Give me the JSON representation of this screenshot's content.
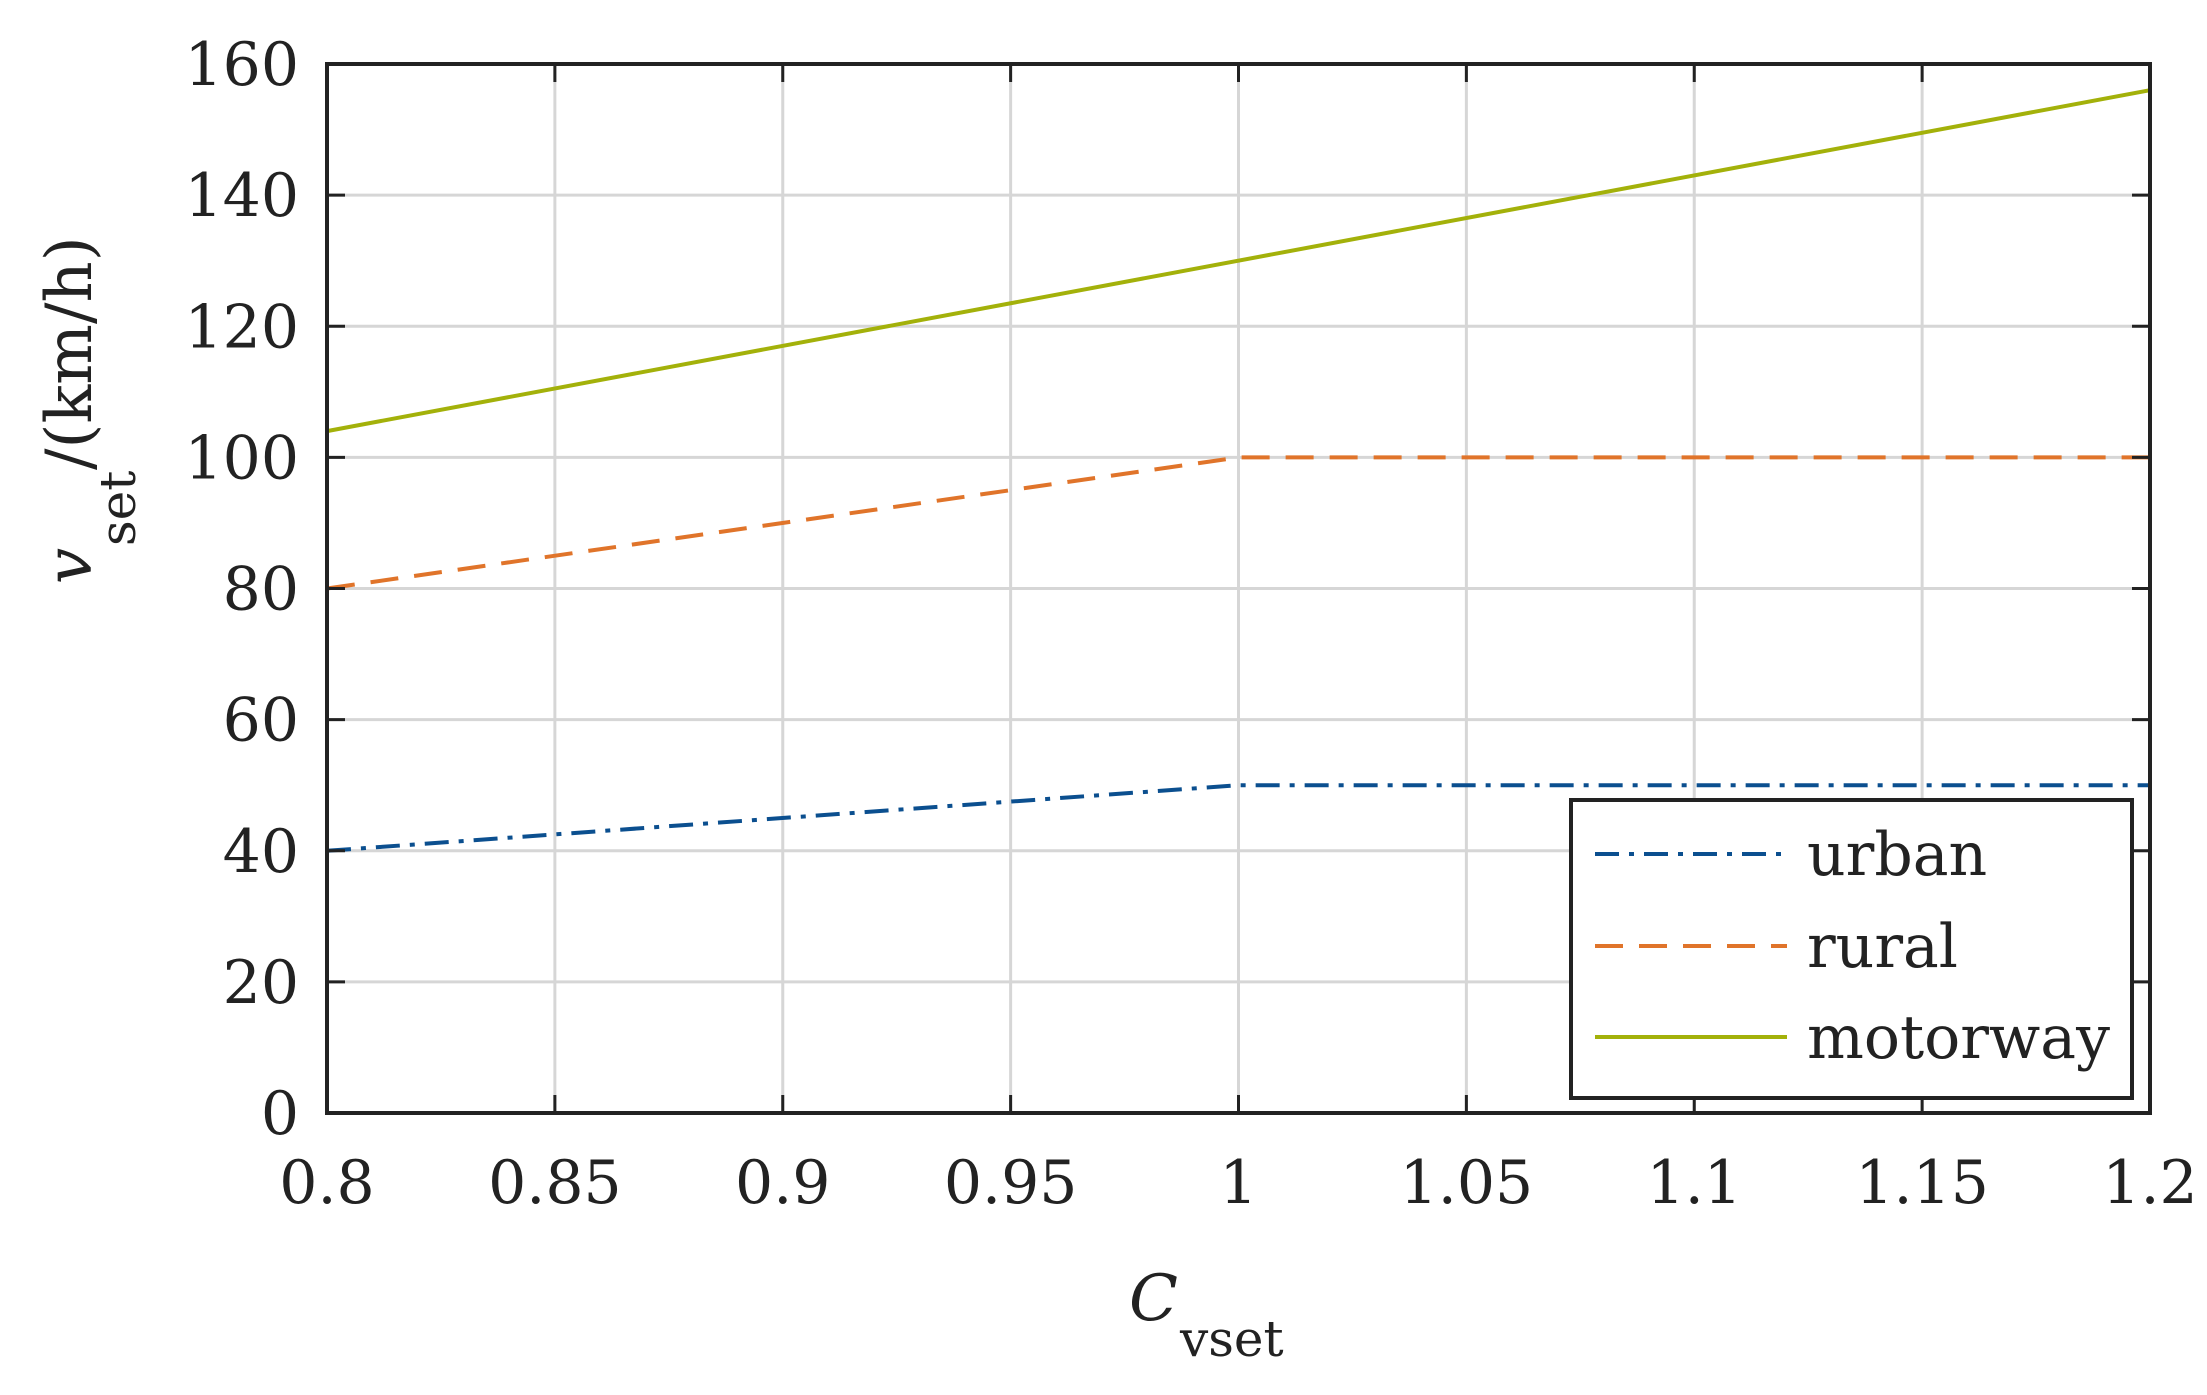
{
  "chart_data": {
    "type": "line",
    "title": "",
    "xlabel": {
      "main": "C",
      "sub": "vset"
    },
    "ylabel": {
      "main": "v",
      "sub": "set",
      "unit": " /(km/h)"
    },
    "xlim": [
      0.8,
      1.2
    ],
    "ylim": [
      0,
      160
    ],
    "xticks": [
      0.8,
      0.85,
      0.9,
      0.95,
      1,
      1.05,
      1.1,
      1.15,
      1.2
    ],
    "xtick_labels": [
      "0.8",
      "0.85",
      "0.9",
      "0.95",
      "1",
      "1.05",
      "1.1",
      "1.15",
      "1.2"
    ],
    "yticks": [
      0,
      20,
      40,
      60,
      80,
      100,
      120,
      140,
      160
    ],
    "ytick_labels": [
      "0",
      "20",
      "40",
      "60",
      "80",
      "100",
      "120",
      "140",
      "160"
    ],
    "grid": true,
    "legend_position": "bottom-right",
    "series": [
      {
        "name": "urban",
        "color": "#0b4f8f",
        "line_style": "dash-dot",
        "x": [
          0.8,
          1.0,
          1.2
        ],
        "y": [
          40,
          50,
          50
        ]
      },
      {
        "name": "rural",
        "color": "#e0742a",
        "line_style": "dashed",
        "x": [
          0.8,
          1.0,
          1.2
        ],
        "y": [
          80,
          100,
          100
        ]
      },
      {
        "name": "motorway",
        "color": "#a3b10a",
        "line_style": "solid",
        "x": [
          0.8,
          1.2
        ],
        "y": [
          104,
          156
        ]
      }
    ]
  }
}
